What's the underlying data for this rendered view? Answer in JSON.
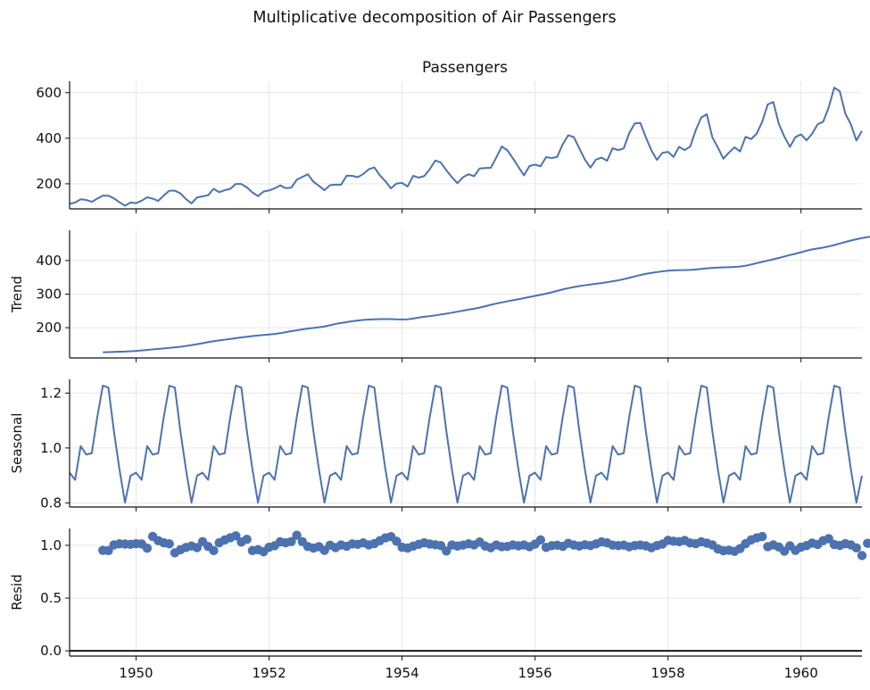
{
  "figure": {
    "title": "Multiplicative decomposition of Air Passengers"
  },
  "colors": {
    "line": "#4c72b0",
    "grid": "#e6e6e6",
    "axis": "#111111"
  },
  "chart_data": [
    {
      "type": "line",
      "title": "Passengers",
      "ylabel": "",
      "ylim": [
        90,
        650
      ],
      "yticks": [
        200,
        400,
        600
      ],
      "xlim": [
        1949.0,
        1960.917
      ],
      "xticks": [
        1950,
        1952,
        1954,
        1956,
        1958,
        1960
      ],
      "show_xticklabels": false,
      "grid": true,
      "start": "1949-01",
      "freq": "monthly",
      "values": [
        112,
        118,
        132,
        129,
        121,
        135,
        148,
        148,
        136,
        119,
        104,
        118,
        115,
        126,
        141,
        135,
        125,
        149,
        170,
        170,
        158,
        133,
        114,
        140,
        145,
        150,
        178,
        163,
        172,
        178,
        199,
        199,
        184,
        162,
        146,
        166,
        171,
        180,
        193,
        181,
        183,
        218,
        230,
        242,
        209,
        191,
        172,
        194,
        196,
        196,
        236,
        235,
        229,
        243,
        264,
        272,
        237,
        211,
        180,
        201,
        204,
        188,
        235,
        227,
        234,
        264,
        302,
        293,
        259,
        229,
        203,
        229,
        242,
        233,
        267,
        269,
        270,
        315,
        364,
        347,
        312,
        274,
        237,
        278,
        284,
        277,
        317,
        313,
        318,
        374,
        413,
        405,
        355,
        306,
        271,
        306,
        315,
        301,
        356,
        348,
        355,
        422,
        465,
        467,
        404,
        347,
        305,
        336,
        340,
        318,
        362,
        348,
        363,
        435,
        491,
        505,
        404,
        359,
        310,
        337,
        360,
        342,
        406,
        396,
        420,
        472,
        548,
        559,
        463,
        407,
        362,
        405,
        417,
        391,
        419,
        461,
        472,
        535,
        622,
        606,
        508,
        461,
        390,
        432
      ]
    },
    {
      "type": "line",
      "title": "",
      "ylabel": "Trend",
      "ylim": [
        110,
        490
      ],
      "yticks": [
        200,
        300,
        400
      ],
      "xlim": [
        1949.0,
        1960.917
      ],
      "xticks": [
        1950,
        1952,
        1954,
        1956,
        1958,
        1960
      ],
      "show_xticklabels": false,
      "grid": true,
      "start": "1949-07",
      "freq": "monthly",
      "values": [
        126.8,
        127.3,
        127.9,
        128.6,
        129.0,
        129.8,
        131.0,
        132.4,
        134.0,
        135.4,
        136.9,
        138.3,
        139.8,
        141.4,
        143.2,
        145.7,
        148.3,
        150.9,
        153.8,
        157.1,
        159.7,
        162.1,
        164.3,
        166.5,
        168.7,
        171.0,
        173.2,
        175.1,
        176.9,
        178.3,
        179.7,
        181.3,
        183.6,
        186.7,
        189.8,
        192.4,
        194.9,
        197.3,
        199.2,
        201.3,
        203.7,
        207.4,
        211.2,
        214.1,
        216.6,
        219.3,
        221.3,
        223.2,
        224.3,
        225.0,
        225.6,
        225.7,
        225.6,
        224.8,
        224.5,
        225.1,
        227.3,
        230.2,
        232.5,
        234.4,
        236.7,
        239.4,
        242.0,
        244.7,
        247.7,
        250.8,
        253.8,
        256.5,
        259.8,
        263.8,
        268.1,
        272.0,
        275.3,
        278.6,
        281.7,
        284.8,
        288.1,
        291.4,
        294.8,
        298.0,
        301.4,
        305.3,
        309.6,
        314.0,
        317.8,
        321.0,
        323.8,
        326.4,
        328.6,
        330.8,
        333.0,
        335.4,
        338.1,
        341.0,
        344.4,
        348.5,
        352.6,
        356.9,
        360.4,
        363.2,
        365.6,
        367.8,
        369.7,
        370.9,
        371.4,
        371.6,
        372.2,
        373.3,
        375.0,
        376.8,
        378.2,
        379.1,
        379.7,
        380.2,
        380.9,
        382.1,
        384.5,
        388.0,
        392.1,
        396.0,
        399.8,
        403.6,
        407.7,
        412.1,
        416.4,
        420.3,
        424.5,
        429.2,
        433.2,
        435.9,
        438.6,
        442.0,
        446.2,
        450.6,
        455.1,
        459.4,
        463.4,
        466.8,
        469.7,
        471.8
      ]
    },
    {
      "type": "line",
      "title": "",
      "ylabel": "Seasonal",
      "ylim": [
        0.785,
        1.25
      ],
      "yticks": [
        0.8,
        1.0,
        1.2
      ],
      "xlim": [
        1949.0,
        1960.917
      ],
      "xticks": [
        1950,
        1952,
        1954,
        1956,
        1958,
        1960
      ],
      "show_xticklabels": false,
      "grid": true,
      "start": "1949-01",
      "freq": "monthly",
      "repeat_years": 12,
      "pattern": [
        0.91,
        0.884,
        1.007,
        0.976,
        0.981,
        1.113,
        1.227,
        1.22,
        1.061,
        0.922,
        0.801,
        0.899
      ]
    },
    {
      "type": "scatter",
      "title": "",
      "ylabel": "Resid",
      "ylim": [
        -0.05,
        1.16
      ],
      "yticks": [
        0.0,
        0.5,
        1.0
      ],
      "hline": 0.0,
      "xlim": [
        1949.0,
        1960.917
      ],
      "xticks": [
        1950,
        1952,
        1954,
        1956,
        1958,
        1960
      ],
      "xticklabels": [
        "1950",
        "1952",
        "1954",
        "1956",
        "1958",
        "1960"
      ],
      "show_xticklabels": true,
      "grid": true,
      "start": "1949-07",
      "freq": "monthly",
      "values": [
        0.952,
        0.95,
        1.004,
        1.014,
        1.012,
        1.009,
        1.016,
        1.013,
        0.973,
        1.084,
        1.044,
        1.024,
        1.014,
        0.929,
        0.958,
        0.98,
        0.993,
        0.979,
        1.035,
        0.989,
        0.95,
        1.024,
        1.051,
        1.072,
        1.09,
        1.031,
        1.057,
        0.95,
        0.958,
        0.939,
        0.982,
        0.996,
        1.033,
        1.024,
        1.035,
        1.095,
        1.035,
        0.988,
        0.974,
        0.987,
        0.952,
        1.001,
        0.979,
        1.003,
        0.991,
        1.013,
        1.009,
        1.023,
        1.004,
        1.017,
        1.044,
        1.071,
        1.082,
        1.039,
        0.982,
        0.974,
        0.992,
        1.009,
        1.024,
        1.012,
        1.005,
        0.997,
        0.946,
        1.003,
        0.993,
        1.002,
        1.014,
        1.004,
        1.031,
        0.993,
        0.977,
        1.003,
        0.987,
        0.989,
        1.004,
        0.995,
        1.003,
        0.987,
        1.011,
        1.051,
        0.981,
        0.996,
        1.001,
        0.99,
        1.019,
        1.003,
        0.993,
        1.005,
        0.997,
        1.013,
        1.032,
        1.023,
        1.002,
        0.997,
        1.002,
        0.986,
        0.998,
        1.003,
        0.995,
        0.977,
        0.998,
        1.012,
        1.047,
        1.039,
        1.035,
        1.046,
        1.022,
        1.016,
        1.034,
        1.021,
        1.004,
        0.966,
        0.949,
        0.953,
        0.943,
        0.969,
        1.016,
        1.051,
        1.071,
        1.083,
        0.987,
        1.004,
        0.984,
        0.945,
        0.995,
        0.952,
        0.983,
        0.997,
        1.021,
        1.008,
        1.044,
        1.063,
        1.008,
        0.999,
        1.016,
        1.004,
        0.975,
        0.903,
        1.019,
        1.011,
        1.025,
        1.013
      ]
    }
  ]
}
